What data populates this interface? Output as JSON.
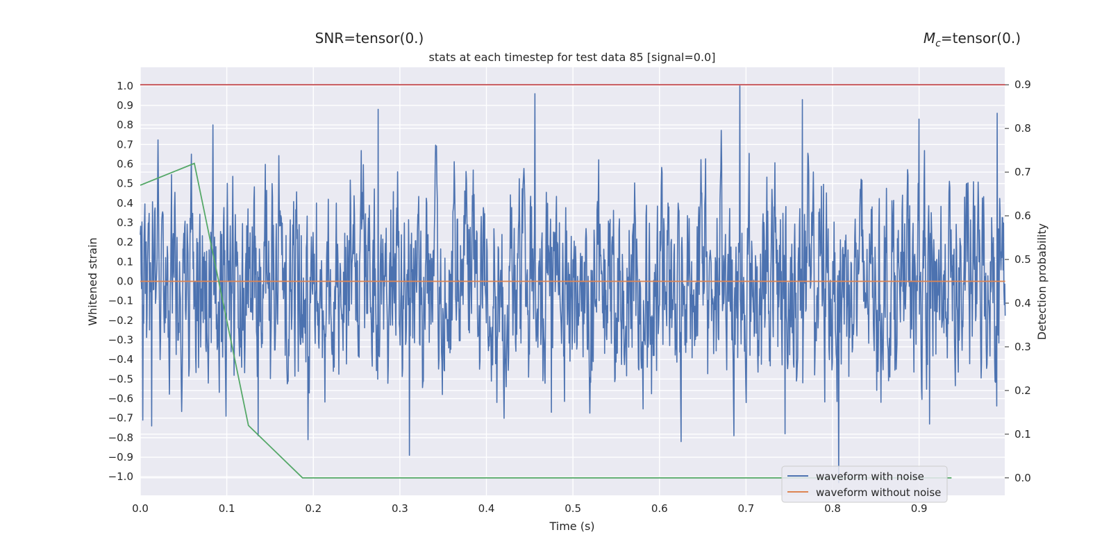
{
  "chart_data": {
    "type": "line",
    "title": "stats at each timestep for test data 85 [signal=0.0]",
    "snr_title": "SNR=tensor(0.)",
    "mc_title_sym": "M",
    "mc_title_sub": "c",
    "mc_title_rest": "=tensor(0.)",
    "xlabel": "Time (s)",
    "ylabel": "Whitened strain",
    "ylabel_right": "Detection probability",
    "xlim": [
      0,
      0.999
    ],
    "ylim": [
      -1.095,
      1.095
    ],
    "ylim_right": [
      -0.04,
      0.94
    ],
    "x_ticks": [
      "0.0",
      "0.1",
      "0.2",
      "0.3",
      "0.4",
      "0.5",
      "0.6",
      "0.7",
      "0.8",
      "0.9"
    ],
    "y_ticks": [
      "1.0",
      "0.9",
      "0.8",
      "0.7",
      "0.6",
      "0.5",
      "0.4",
      "0.3",
      "0.2",
      "0.1",
      "0.0",
      "−0.1",
      "−0.2",
      "−0.3",
      "−0.4",
      "−0.5",
      "−0.6",
      "−0.7",
      "−0.8",
      "−0.9",
      "−1.0"
    ],
    "y_ticks_right": [
      "0.9",
      "0.8",
      "0.7",
      "0.6",
      "0.5",
      "0.4",
      "0.3",
      "0.2",
      "0.1",
      "0.0"
    ],
    "grid": true,
    "legend_position": "bottom-right",
    "series": [
      {
        "name": "waveform with noise",
        "axis": "left",
        "color": "#4c72b0",
        "samples": 2048,
        "x_range": [
          0,
          0.9995
        ],
        "range": [
          -1.03,
          1.0
        ],
        "peaks": [
          {
            "x": 0.003,
            "y": 0.66
          },
          {
            "x": 0.003,
            "y": -0.71
          },
          {
            "x": 0.013,
            "y": -0.74
          },
          {
            "x": 0.084,
            "y": 0.8
          },
          {
            "x": 0.136,
            "y": -0.79
          },
          {
            "x": 0.194,
            "y": -0.81
          },
          {
            "x": 0.275,
            "y": 0.88
          },
          {
            "x": 0.311,
            "y": -0.89
          },
          {
            "x": 0.456,
            "y": 0.96
          },
          {
            "x": 0.475,
            "y": -0.67
          },
          {
            "x": 0.625,
            "y": -0.82
          },
          {
            "x": 0.693,
            "y": 1.0
          },
          {
            "x": 0.686,
            "y": -0.79
          },
          {
            "x": 0.745,
            "y": -0.78
          },
          {
            "x": 0.765,
            "y": 0.93
          },
          {
            "x": 0.807,
            "y": -1.03
          },
          {
            "x": 0.9,
            "y": 0.83
          },
          {
            "x": 0.912,
            "y": -0.73
          },
          {
            "x": 0.99,
            "y": 0.86
          }
        ]
      },
      {
        "name": "waveform without noise",
        "axis": "left",
        "color": "#dd8452",
        "x": [
          0,
          0.9995
        ],
        "y": [
          0,
          0
        ]
      },
      {
        "axis": "right",
        "color": "#55a868",
        "x": [
          0.0,
          0.0625,
          0.125,
          0.1875,
          0.25,
          0.3125,
          0.375,
          0.4375,
          0.5,
          0.5625,
          0.625,
          0.6875,
          0.75,
          0.8125,
          0.875,
          0.9375
        ],
        "y": [
          0.67,
          0.72,
          0.12,
          0.0,
          0.0,
          0.0,
          0.0,
          0.0,
          0.0,
          0.0,
          0.0,
          0.0,
          0.0,
          0.0,
          0.0,
          0.0
        ]
      },
      {
        "axis": "right",
        "color": "#c44e52",
        "x": [
          0,
          0.9995
        ],
        "y": [
          0.9,
          0.9
        ]
      }
    ]
  }
}
